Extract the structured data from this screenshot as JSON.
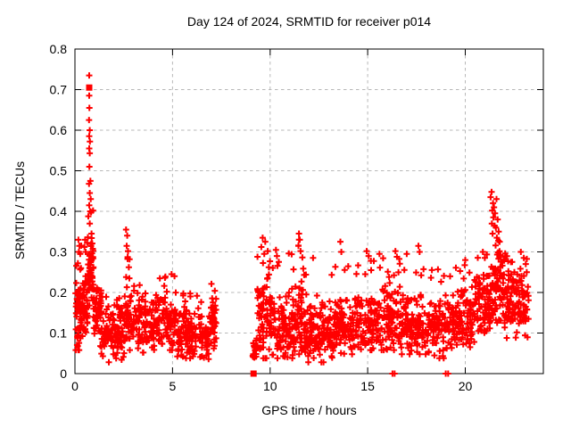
{
  "chart_data": {
    "type": "scatter",
    "title": "Day 124 of 2024, SRMTID for receiver p014",
    "xlabel": "GPS time / hours",
    "ylabel": "SRMTID / TECUs",
    "xlim": [
      0,
      24
    ],
    "ylim": [
      0,
      0.8
    ],
    "xticks": [
      0,
      5,
      10,
      15,
      20
    ],
    "yticks": [
      0,
      0.1,
      0.2,
      0.3,
      0.4,
      0.5,
      0.6,
      0.7,
      0.8
    ],
    "grid": true,
    "grid_style": "dashed",
    "grid_color": "#b8b8b8",
    "marker": "plus",
    "marker_color": "#ff0000",
    "axis_color": "#000000",
    "background": "#ffffff",
    "data_gap_hours": [
      7.25,
      9.1
    ],
    "square_points": [
      [
        0.73,
        0.705
      ],
      [
        9.15,
        0.0
      ]
    ],
    "baseline_points": [
      [
        16.27,
        0.0
      ],
      [
        16.38,
        0.0
      ],
      [
        19.0,
        0.0
      ],
      [
        19.12,
        0.0
      ]
    ],
    "highlight_points": [
      [
        0.73,
        0.735
      ],
      [
        0.73,
        0.685
      ],
      [
        0.74,
        0.655
      ],
      [
        0.72,
        0.625
      ],
      [
        0.76,
        0.6
      ],
      [
        0.73,
        0.585
      ],
      [
        0.77,
        0.572
      ],
      [
        0.73,
        0.555
      ],
      [
        0.76,
        0.543
      ],
      [
        0.74,
        0.51
      ],
      [
        0.79,
        0.475
      ],
      [
        0.72,
        0.468
      ],
      [
        0.76,
        0.445
      ],
      [
        0.81,
        0.43
      ],
      [
        0.73,
        0.415
      ],
      [
        0.78,
        0.4
      ],
      [
        0.83,
        0.398
      ],
      [
        0.76,
        0.37
      ],
      [
        0.85,
        0.345
      ],
      [
        0.18,
        0.33
      ],
      [
        0.23,
        0.315
      ],
      [
        0.2,
        0.3
      ],
      [
        0.27,
        0.295
      ],
      [
        0.15,
        0.272
      ],
      [
        0.31,
        0.26
      ],
      [
        0.52,
        0.33
      ],
      [
        0.49,
        0.312
      ],
      [
        0.55,
        0.3
      ],
      [
        2.62,
        0.355
      ],
      [
        2.68,
        0.34
      ],
      [
        2.65,
        0.315
      ],
      [
        2.72,
        0.302
      ],
      [
        2.7,
        0.287
      ],
      [
        2.76,
        0.262
      ],
      [
        2.79,
        0.235
      ],
      [
        4.35,
        0.235
      ],
      [
        4.95,
        0.245
      ],
      [
        5.1,
        0.24
      ],
      [
        9.62,
        0.335
      ],
      [
        9.75,
        0.325
      ],
      [
        9.55,
        0.312
      ],
      [
        9.88,
        0.302
      ],
      [
        9.7,
        0.295
      ],
      [
        10.3,
        0.305
      ],
      [
        10.35,
        0.29
      ],
      [
        11.48,
        0.345
      ],
      [
        11.52,
        0.33
      ],
      [
        11.45,
        0.315
      ],
      [
        11.56,
        0.302
      ],
      [
        12.2,
        0.285
      ],
      [
        13.6,
        0.325
      ],
      [
        13.65,
        0.3
      ],
      [
        14.95,
        0.302
      ],
      [
        15.05,
        0.29
      ],
      [
        15.6,
        0.295
      ],
      [
        16.42,
        0.302
      ],
      [
        16.5,
        0.288
      ],
      [
        17.0,
        0.295
      ],
      [
        17.6,
        0.315
      ],
      [
        17.66,
        0.3
      ],
      [
        18.6,
        0.257
      ],
      [
        20.0,
        0.28
      ],
      [
        20.9,
        0.3
      ],
      [
        21.0,
        0.285
      ],
      [
        21.35,
        0.448
      ],
      [
        21.3,
        0.435
      ],
      [
        21.6,
        0.43
      ],
      [
        21.42,
        0.42
      ],
      [
        21.47,
        0.41
      ],
      [
        21.38,
        0.402
      ],
      [
        21.52,
        0.395
      ],
      [
        21.44,
        0.385
      ],
      [
        21.66,
        0.38
      ],
      [
        21.36,
        0.37
      ],
      [
        21.57,
        0.36
      ],
      [
        21.71,
        0.35
      ],
      [
        21.4,
        0.345
      ],
      [
        21.62,
        0.335
      ],
      [
        21.76,
        0.325
      ],
      [
        22.85,
        0.3
      ],
      [
        23.0,
        0.285
      ],
      [
        23.1,
        0.27
      ],
      [
        23.15,
        0.25
      ]
    ],
    "bands_note": "dense scatter cloud segments: a=start hour, b=end hour, n=approx point count, lo/c/hi=min/center/max TECU band, t=max of sparse upper tail",
    "dense_bands": [
      {
        "a": 0.03,
        "b": 0.35,
        "n": 60,
        "lo": 0.07,
        "c": 0.15,
        "hi": 0.25,
        "t": 0.33
      },
      {
        "a": 0.35,
        "b": 0.65,
        "n": 45,
        "lo": 0.09,
        "c": 0.16,
        "hi": 0.25,
        "t": 0.33
      },
      {
        "a": 0.65,
        "b": 0.95,
        "n": 55,
        "lo": 0.18,
        "c": 0.26,
        "hi": 0.35,
        "t": 0.44
      },
      {
        "a": 0.95,
        "b": 1.35,
        "n": 45,
        "lo": 0.08,
        "c": 0.15,
        "hi": 0.24,
        "t": 0.27
      },
      {
        "a": 1.35,
        "b": 2.55,
        "n": 110,
        "lo": 0.04,
        "c": 0.1,
        "hi": 0.16,
        "t": 0.19
      },
      {
        "a": 2.55,
        "b": 2.95,
        "n": 45,
        "lo": 0.07,
        "c": 0.14,
        "hi": 0.22,
        "t": 0.3
      },
      {
        "a": 2.95,
        "b": 4.2,
        "n": 110,
        "lo": 0.06,
        "c": 0.12,
        "hi": 0.19,
        "t": 0.22
      },
      {
        "a": 4.2,
        "b": 5.2,
        "n": 90,
        "lo": 0.07,
        "c": 0.13,
        "hi": 0.21,
        "t": 0.25
      },
      {
        "a": 5.2,
        "b": 6.5,
        "n": 110,
        "lo": 0.05,
        "c": 0.1,
        "hi": 0.17,
        "t": 0.2
      },
      {
        "a": 6.5,
        "b": 6.9,
        "n": 35,
        "lo": 0.04,
        "c": 0.08,
        "hi": 0.13,
        "t": 0.15
      },
      {
        "a": 6.9,
        "b": 7.25,
        "n": 40,
        "lo": 0.06,
        "c": 0.13,
        "hi": 0.22,
        "t": 0.25
      },
      {
        "a": 9.1,
        "b": 9.35,
        "n": 20,
        "lo": 0.03,
        "c": 0.06,
        "hi": 0.1,
        "t": 0.12
      },
      {
        "a": 9.35,
        "b": 10.15,
        "n": 85,
        "lo": 0.05,
        "c": 0.14,
        "hi": 0.26,
        "t": 0.33
      },
      {
        "a": 10.15,
        "b": 11.25,
        "n": 100,
        "lo": 0.05,
        "c": 0.12,
        "hi": 0.22,
        "t": 0.3
      },
      {
        "a": 11.25,
        "b": 11.75,
        "n": 50,
        "lo": 0.06,
        "c": 0.14,
        "hi": 0.25,
        "t": 0.34
      },
      {
        "a": 11.75,
        "b": 13.3,
        "n": 140,
        "lo": 0.04,
        "c": 0.1,
        "hi": 0.18,
        "t": 0.27
      },
      {
        "a": 13.3,
        "b": 14.3,
        "n": 90,
        "lo": 0.06,
        "c": 0.12,
        "hi": 0.2,
        "t": 0.28
      },
      {
        "a": 14.3,
        "b": 15.4,
        "n": 100,
        "lo": 0.07,
        "c": 0.13,
        "hi": 0.22,
        "t": 0.29
      },
      {
        "a": 15.4,
        "b": 16.7,
        "n": 110,
        "lo": 0.07,
        "c": 0.14,
        "hi": 0.23,
        "t": 0.3
      },
      {
        "a": 16.7,
        "b": 18.1,
        "n": 120,
        "lo": 0.06,
        "c": 0.12,
        "hi": 0.21,
        "t": 0.3
      },
      {
        "a": 18.1,
        "b": 19.1,
        "n": 80,
        "lo": 0.05,
        "c": 0.11,
        "hi": 0.19,
        "t": 0.26
      },
      {
        "a": 19.1,
        "b": 20.4,
        "n": 110,
        "lo": 0.07,
        "c": 0.13,
        "hi": 0.21,
        "t": 0.28
      },
      {
        "a": 20.4,
        "b": 21.3,
        "n": 90,
        "lo": 0.09,
        "c": 0.17,
        "hi": 0.26,
        "t": 0.31
      },
      {
        "a": 21.3,
        "b": 22.0,
        "n": 70,
        "lo": 0.12,
        "c": 0.22,
        "hi": 0.32,
        "t": 0.4
      },
      {
        "a": 22.0,
        "b": 22.7,
        "n": 70,
        "lo": 0.1,
        "c": 0.18,
        "hi": 0.27,
        "t": 0.31
      },
      {
        "a": 22.7,
        "b": 23.25,
        "n": 50,
        "lo": 0.1,
        "c": 0.17,
        "hi": 0.25,
        "t": 0.285
      }
    ]
  }
}
